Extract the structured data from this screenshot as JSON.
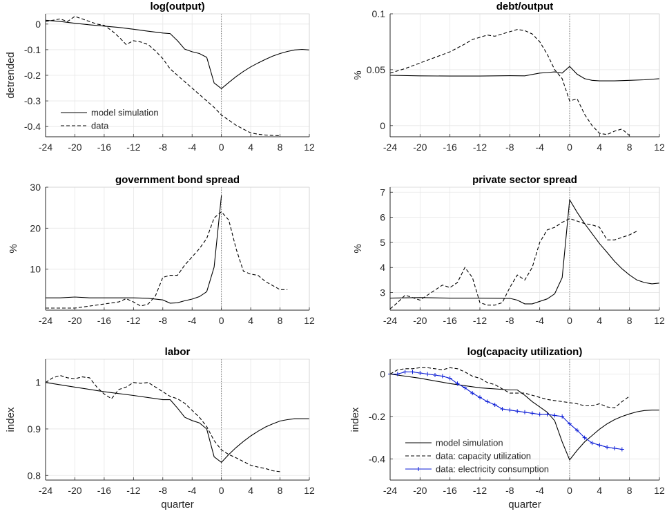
{
  "chart_data": [
    {
      "type": "line",
      "title": "log(output)",
      "xlabel": "",
      "ylabel": "detrended",
      "xlim": [
        -24,
        12
      ],
      "ylim": [
        -0.44,
        0.04
      ],
      "xticks": [
        -24,
        -20,
        -16,
        -12,
        -8,
        -4,
        0,
        4,
        8,
        12
      ],
      "xtick_labels": [
        "-24",
        "-20",
        "-16",
        "-12",
        "-8",
        "-4",
        "0",
        "4",
        "8",
        "12"
      ],
      "yticks": [
        0,
        -0.1,
        -0.2,
        -0.3,
        -0.4
      ],
      "ytick_labels": [
        "0",
        "-0.1",
        "-0.2",
        "-0.3",
        "-0.4"
      ],
      "grid": true,
      "vline_x": 0,
      "legend": {
        "position": "bottom-left",
        "entries": [
          "model simulation",
          "data"
        ]
      },
      "series": [
        {
          "name": "model simulation",
          "style": "solid",
          "color": "#000000",
          "x": [
            -24,
            -22,
            -20,
            -18,
            -16,
            -14,
            -12,
            -10,
            -8,
            -7,
            -6,
            -5,
            -4,
            -3,
            -2,
            -1,
            0,
            1,
            2,
            3,
            4,
            5,
            6,
            7,
            8,
            9,
            10,
            11,
            12
          ],
          "y": [
            0.015,
            0.01,
            0.003,
            -0.003,
            -0.008,
            -0.013,
            -0.02,
            -0.028,
            -0.035,
            -0.037,
            -0.065,
            -0.098,
            -0.108,
            -0.115,
            -0.13,
            -0.23,
            -0.252,
            -0.228,
            -0.205,
            -0.185,
            -0.167,
            -0.152,
            -0.138,
            -0.125,
            -0.115,
            -0.107,
            -0.101,
            -0.099,
            -0.101
          ]
        },
        {
          "name": "data",
          "style": "dashed",
          "color": "#000000",
          "x": [
            -24,
            -23,
            -22,
            -21,
            -20,
            -19,
            -18,
            -17,
            -16,
            -15,
            -14,
            -13,
            -12,
            -11,
            -10,
            -9,
            -8,
            -7,
            -6,
            -5,
            -4,
            -3,
            -2,
            -1,
            0,
            1,
            2,
            3,
            4,
            5,
            6,
            7,
            8
          ],
          "y": [
            0.01,
            0.015,
            0.02,
            0.01,
            0.03,
            0.02,
            0.01,
            0.0,
            -0.005,
            -0.025,
            -0.05,
            -0.08,
            -0.065,
            -0.07,
            -0.08,
            -0.105,
            -0.135,
            -0.175,
            -0.2,
            -0.225,
            -0.25,
            -0.275,
            -0.3,
            -0.325,
            -0.355,
            -0.375,
            -0.395,
            -0.41,
            -0.425,
            -0.43,
            -0.433,
            -0.435,
            -0.436
          ]
        }
      ]
    },
    {
      "type": "line",
      "title": "debt/output",
      "xlabel": "",
      "ylabel": "%",
      "xlim": [
        -24,
        12
      ],
      "ylim": [
        -0.01,
        0.1
      ],
      "xticks": [
        -24,
        -20,
        -16,
        -12,
        -8,
        -4,
        0,
        4,
        8,
        12
      ],
      "xtick_labels": [
        "-24",
        "-20",
        "-16",
        "-12",
        "-8",
        "-4",
        "0",
        "4",
        "8",
        "12"
      ],
      "yticks": [
        0,
        0.05,
        0.1
      ],
      "ytick_labels": [
        "0",
        "0.05",
        "0.1"
      ],
      "grid": true,
      "vline_x": 0,
      "series": [
        {
          "name": "model simulation",
          "style": "solid",
          "color": "#000000",
          "x": [
            -24,
            -20,
            -16,
            -12,
            -8,
            -6,
            -4,
            -3,
            -2,
            -1,
            0,
            1,
            2,
            3,
            4,
            6,
            8,
            10,
            12
          ],
          "y": [
            0.045,
            0.0445,
            0.0443,
            0.0443,
            0.0446,
            0.0445,
            0.047,
            0.0475,
            0.048,
            0.047,
            0.053,
            0.046,
            0.042,
            0.0405,
            0.04,
            0.04,
            0.0405,
            0.041,
            0.042
          ]
        },
        {
          "name": "data",
          "style": "dashed",
          "color": "#000000",
          "x": [
            -24,
            -22,
            -20,
            -18,
            -16,
            -14,
            -13,
            -12,
            -11,
            -10,
            -9,
            -8,
            -7,
            -6,
            -5,
            -4,
            -3,
            -2,
            -1,
            0,
            1,
            2,
            3,
            4,
            5,
            6,
            7,
            8
          ],
          "y": [
            0.047,
            0.051,
            0.056,
            0.061,
            0.066,
            0.073,
            0.077,
            0.079,
            0.081,
            0.08,
            0.082,
            0.084,
            0.086,
            0.085,
            0.082,
            0.075,
            0.064,
            0.05,
            0.042,
            0.022,
            0.024,
            0.01,
            0.0,
            -0.007,
            -0.008,
            -0.005,
            -0.003,
            -0.009
          ]
        }
      ]
    },
    {
      "type": "line",
      "title": "government bond spread",
      "xlabel": "",
      "ylabel": "%",
      "xlim": [
        -24,
        12
      ],
      "ylim": [
        0,
        30
      ],
      "xticks": [
        -24,
        -20,
        -16,
        -12,
        -8,
        -4,
        0,
        4,
        8,
        12
      ],
      "xtick_labels": [
        "-24",
        "-20",
        "-16",
        "-12",
        "-8",
        "-4",
        "0",
        "4",
        "8",
        "12"
      ],
      "yticks": [
        10,
        20,
        30
      ],
      "ytick_labels": [
        "10",
        "20",
        "30"
      ],
      "grid": true,
      "vline_x": 0,
      "series": [
        {
          "name": "model simulation",
          "style": "solid",
          "color": "#000000",
          "x": [
            -24,
            -22,
            -20,
            -18,
            -16,
            -14,
            -12,
            -10,
            -8,
            -7,
            -6,
            -5,
            -4,
            -3,
            -2,
            -1,
            0
          ],
          "y": [
            3.0,
            3.0,
            3.2,
            3.0,
            3.0,
            3.0,
            3.0,
            2.9,
            2.5,
            1.7,
            1.8,
            2.3,
            2.7,
            3.3,
            4.5,
            10.5,
            28.0
          ]
        },
        {
          "name": "data",
          "style": "dashed",
          "color": "#000000",
          "x": [
            -24,
            -22,
            -20,
            -18,
            -16,
            -14,
            -13,
            -12,
            -11,
            -10,
            -9,
            -8,
            -7,
            -6,
            -5,
            -4,
            -3,
            -2,
            -1,
            0,
            1,
            2,
            3,
            4,
            5,
            6,
            7,
            8,
            9
          ],
          "y": [
            0.5,
            0.5,
            0.5,
            1.0,
            1.5,
            2.0,
            2.8,
            2.0,
            1.0,
            1.5,
            3.5,
            8.0,
            8.5,
            8.5,
            11.0,
            13.0,
            15.0,
            17.5,
            22.5,
            24.0,
            22.0,
            15.0,
            9.5,
            8.8,
            8.5,
            7.0,
            6.0,
            5.0,
            5.0
          ]
        }
      ]
    },
    {
      "type": "line",
      "title": "private sector spread",
      "xlabel": "",
      "ylabel": "%",
      "xlim": [
        -24,
        12
      ],
      "ylim": [
        2.3,
        7.2
      ],
      "xticks": [
        -24,
        -20,
        -16,
        -12,
        -8,
        -4,
        0,
        4,
        8,
        12
      ],
      "xtick_labels": [
        "-24",
        "-20",
        "-16",
        "-12",
        "-8",
        "-4",
        "0",
        "4",
        "8",
        "12"
      ],
      "yticks": [
        3,
        4,
        5,
        6,
        7
      ],
      "ytick_labels": [
        "3",
        "4",
        "5",
        "6",
        "7"
      ],
      "grid": true,
      "vline_x": 0,
      "series": [
        {
          "name": "model simulation",
          "style": "solid",
          "color": "#000000",
          "x": [
            -24,
            -20,
            -16,
            -12,
            -8,
            -7,
            -6,
            -5,
            -4,
            -3,
            -2,
            -1,
            0,
            1,
            2,
            3,
            4,
            5,
            6,
            7,
            8,
            9,
            10,
            11,
            12
          ],
          "y": [
            2.78,
            2.8,
            2.78,
            2.78,
            2.77,
            2.7,
            2.55,
            2.55,
            2.65,
            2.75,
            2.95,
            3.6,
            6.7,
            6.2,
            5.75,
            5.35,
            4.95,
            4.6,
            4.25,
            3.95,
            3.7,
            3.5,
            3.4,
            3.35,
            3.38
          ]
        },
        {
          "name": "data",
          "style": "dashed",
          "color": "#000000",
          "x": [
            -24,
            -23,
            -22,
            -21,
            -20,
            -19,
            -18,
            -17,
            -16,
            -15,
            -14,
            -13,
            -12,
            -11,
            -10,
            -9,
            -8,
            -7,
            -6,
            -5,
            -4,
            -3,
            -2,
            -1,
            0,
            1,
            2,
            3,
            4,
            5,
            6,
            7,
            8,
            9
          ],
          "y": [
            2.35,
            2.6,
            2.9,
            2.8,
            2.7,
            2.9,
            3.1,
            3.3,
            3.2,
            3.4,
            4.0,
            3.6,
            2.6,
            2.5,
            2.5,
            2.6,
            3.2,
            3.7,
            3.5,
            4.0,
            5.0,
            5.5,
            5.6,
            5.8,
            5.95,
            5.85,
            5.75,
            5.7,
            5.6,
            5.1,
            5.1,
            5.2,
            5.3,
            5.45
          ]
        }
      ]
    },
    {
      "type": "line",
      "title": "labor",
      "xlabel": "quarter",
      "ylabel": "index",
      "xlim": [
        -24,
        12
      ],
      "ylim": [
        0.79,
        1.05
      ],
      "xticks": [
        -24,
        -20,
        -16,
        -12,
        -8,
        -4,
        0,
        4,
        8,
        12
      ],
      "xtick_labels": [
        "-24",
        "-20",
        "-16",
        "-12",
        "-8",
        "-4",
        "0",
        "4",
        "8",
        "12"
      ],
      "yticks": [
        0.8,
        0.9,
        1
      ],
      "ytick_labels": [
        "0.8",
        "0.9",
        "1"
      ],
      "grid": true,
      "vline_x": 0,
      "series": [
        {
          "name": "model simulation",
          "style": "solid",
          "color": "#000000",
          "x": [
            -24,
            -20,
            -16,
            -12,
            -8,
            -7,
            -6,
            -5,
            -4,
            -3,
            -2,
            -1,
            0,
            1,
            2,
            3,
            4,
            5,
            6,
            7,
            8,
            9,
            10,
            11,
            12
          ],
          "y": [
            1.0,
            0.99,
            0.98,
            0.972,
            0.963,
            0.963,
            0.945,
            0.925,
            0.918,
            0.913,
            0.9,
            0.84,
            0.828,
            0.845,
            0.86,
            0.873,
            0.885,
            0.895,
            0.904,
            0.911,
            0.917,
            0.92,
            0.922,
            0.922,
            0.922
          ]
        },
        {
          "name": "data",
          "style": "dashed",
          "color": "#000000",
          "x": [
            -24,
            -23,
            -22,
            -21,
            -20,
            -19,
            -18,
            -17,
            -16,
            -15,
            -14,
            -13,
            -12,
            -11,
            -10,
            -9,
            -8,
            -7,
            -6,
            -5,
            -4,
            -3,
            -2,
            -1,
            0,
            1,
            2,
            3,
            4,
            5,
            6,
            7,
            8
          ],
          "y": [
            1.0,
            1.01,
            1.015,
            1.01,
            1.008,
            1.012,
            1.01,
            0.99,
            0.975,
            0.965,
            0.985,
            0.99,
            1.0,
            0.998,
            1.0,
            0.99,
            0.98,
            0.97,
            0.965,
            0.955,
            0.94,
            0.925,
            0.905,
            0.875,
            0.855,
            0.845,
            0.838,
            0.83,
            0.822,
            0.818,
            0.815,
            0.81,
            0.808
          ]
        }
      ]
    },
    {
      "type": "line",
      "title": "log(capacity utilization)",
      "xlabel": "quarter",
      "ylabel": "index",
      "xlim": [
        -24,
        12
      ],
      "ylim": [
        -0.5,
        0.07
      ],
      "xticks": [
        -24,
        -20,
        -16,
        -12,
        -8,
        -4,
        0,
        4,
        8,
        12
      ],
      "xtick_labels": [
        "-24",
        "-20",
        "-16",
        "-12",
        "-8",
        "-4",
        "0",
        "4",
        "8",
        "12"
      ],
      "yticks": [
        0,
        -0.2,
        -0.4
      ],
      "ytick_labels": [
        "0",
        "-0.2",
        "-0.4"
      ],
      "grid": true,
      "vline_x": 0,
      "legend": {
        "position": "bottom-left",
        "entries": [
          "model simulation",
          "data: capacity utilization",
          "data: electricity consumption"
        ]
      },
      "series": [
        {
          "name": "model simulation",
          "style": "solid",
          "color": "#000000",
          "x": [
            -24,
            -20,
            -16,
            -12,
            -8,
            -7,
            -6,
            -5,
            -4,
            -3,
            -2,
            -1,
            0,
            1,
            2,
            3,
            4,
            5,
            6,
            7,
            8,
            9,
            10,
            11,
            12
          ],
          "y": [
            0.0,
            -0.02,
            -0.045,
            -0.065,
            -0.075,
            -0.075,
            -0.1,
            -0.13,
            -0.155,
            -0.18,
            -0.22,
            -0.32,
            -0.405,
            -0.36,
            -0.32,
            -0.29,
            -0.26,
            -0.235,
            -0.215,
            -0.2,
            -0.188,
            -0.178,
            -0.172,
            -0.17,
            -0.17
          ]
        },
        {
          "name": "data: capacity utilization",
          "style": "dashed",
          "color": "#000000",
          "x": [
            -24,
            -23,
            -22,
            -21,
            -20,
            -19,
            -18,
            -17,
            -16,
            -15,
            -14,
            -13,
            -12,
            -11,
            -10,
            -9,
            -8,
            -7,
            -6,
            -5,
            -4,
            -3,
            -2,
            -1,
            0,
            1,
            2,
            3,
            4,
            5,
            6,
            7,
            8
          ],
          "y": [
            0.0,
            0.02,
            0.025,
            0.025,
            0.03,
            0.03,
            0.025,
            0.02,
            0.03,
            0.025,
            0.01,
            -0.01,
            -0.02,
            -0.04,
            -0.05,
            -0.07,
            -0.09,
            -0.09,
            -0.09,
            -0.1,
            -0.11,
            -0.12,
            -0.125,
            -0.13,
            -0.135,
            -0.14,
            -0.15,
            -0.15,
            -0.14,
            -0.155,
            -0.16,
            -0.13,
            -0.105
          ]
        },
        {
          "name": "data: electricity consumption",
          "style": "solid-markers",
          "color": "#0a1bd6",
          "x": [
            -24,
            -23,
            -22,
            -21,
            -20,
            -19,
            -18,
            -17,
            -16,
            -15,
            -14,
            -13,
            -12,
            -11,
            -10,
            -9,
            -8,
            -7,
            -6,
            -5,
            -4,
            -3,
            -2,
            -1,
            0,
            1,
            2,
            3,
            4,
            5,
            6,
            7
          ],
          "y": [
            0.0,
            0.0,
            0.01,
            0.01,
            0.005,
            0.0,
            -0.005,
            -0.01,
            -0.02,
            -0.045,
            -0.065,
            -0.09,
            -0.11,
            -0.13,
            -0.145,
            -0.165,
            -0.17,
            -0.175,
            -0.18,
            -0.185,
            -0.19,
            -0.19,
            -0.195,
            -0.2,
            -0.235,
            -0.265,
            -0.3,
            -0.325,
            -0.335,
            -0.345,
            -0.35,
            -0.355
          ]
        }
      ]
    }
  ]
}
